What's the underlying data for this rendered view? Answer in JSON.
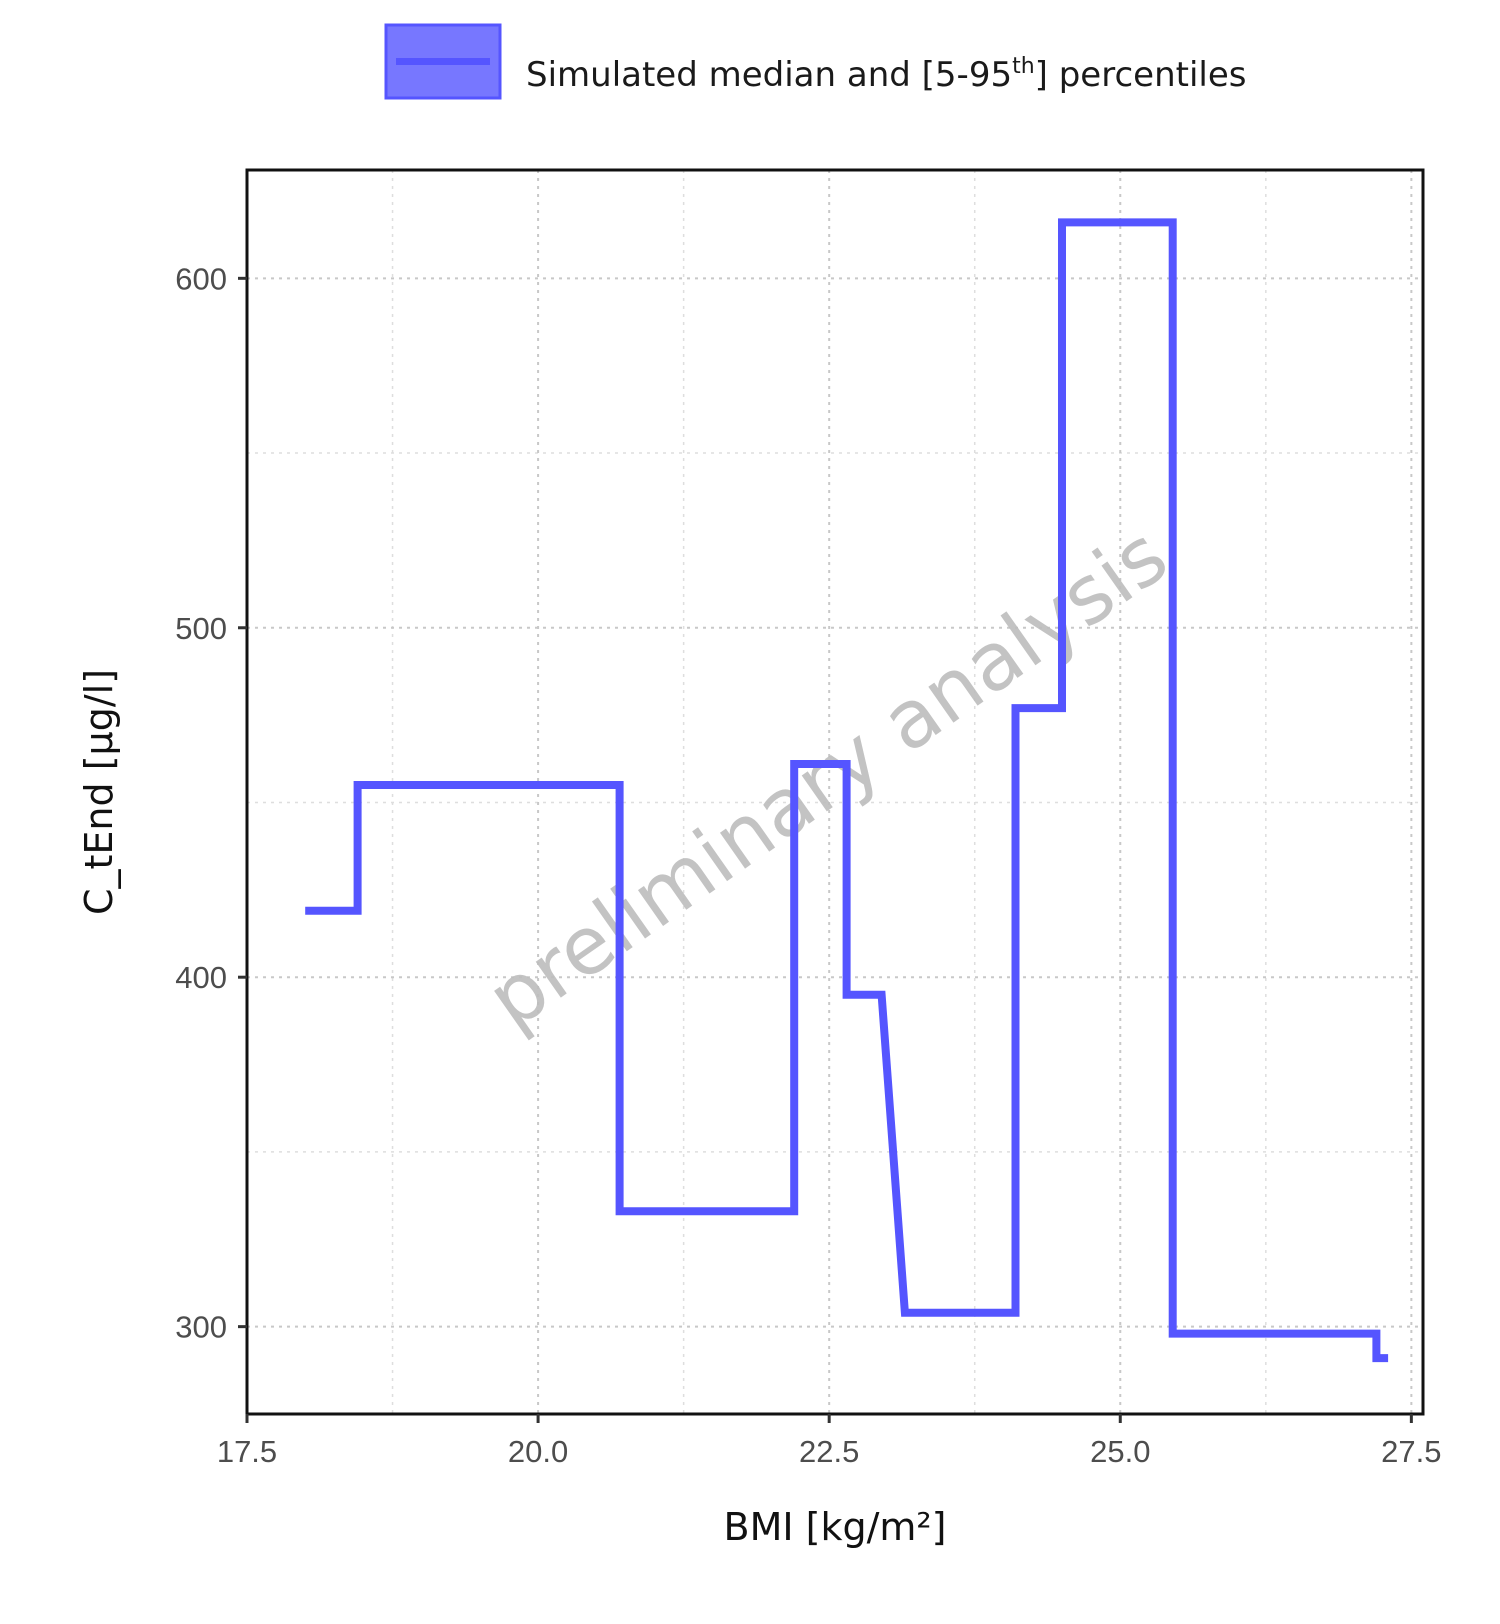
{
  "chart_data": {
    "type": "line",
    "title": "",
    "xlabel": "BMI [kg/m²]",
    "ylabel": "C_tEnd [µg/l]",
    "xlim": [
      17.5,
      27.6
    ],
    "ylim": [
      275,
      631
    ],
    "xticks": [
      17.5,
      20.0,
      22.5,
      25.0,
      27.5
    ],
    "xtick_labels": [
      "17.5",
      "20.0",
      "22.5",
      "25.0",
      "27.5"
    ],
    "yticks": [
      300,
      400,
      500,
      600
    ],
    "ytick_labels": [
      "300",
      "400",
      "500",
      "600"
    ],
    "grid": true,
    "legend": {
      "placement": "top-center",
      "label_main": "Simulated median and [5-95",
      "label_sup": "th",
      "label_end": "] percentiles"
    },
    "watermark": "preliminary analysis",
    "colors": {
      "series": "#5555ff",
      "fill": "#7777ff"
    },
    "series": [
      {
        "name": "Simulated median and [5-95th] percentiles",
        "x": [
          18.0,
          18.45,
          18.45,
          20.7,
          20.7,
          22.2,
          22.2,
          22.65,
          22.65,
          22.95,
          23.15,
          24.1,
          24.1,
          24.5,
          24.5,
          25.45,
          25.45,
          27.2,
          27.2,
          27.3
        ],
        "y": [
          419,
          419,
          455,
          455,
          333,
          333,
          461,
          461,
          395,
          395,
          304,
          304,
          477,
          477,
          616,
          616,
          298,
          298,
          291,
          291
        ]
      }
    ]
  }
}
